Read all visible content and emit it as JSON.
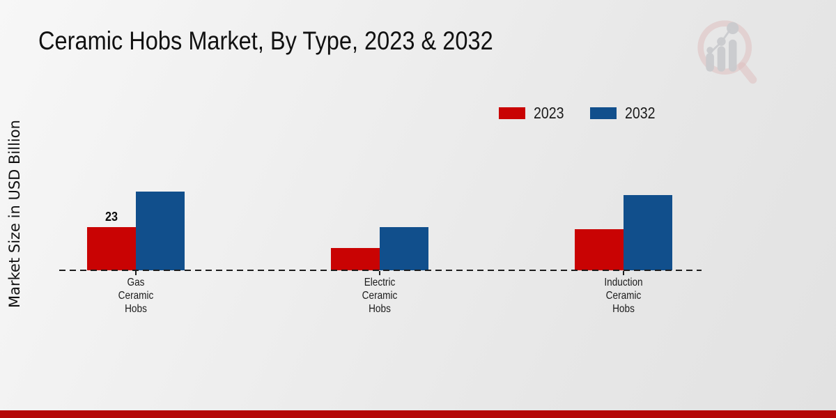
{
  "title": "Ceramic Hobs Market, By Type, 2023 & 2032",
  "y_axis_label": "Market Size in USD Billion",
  "legend": {
    "position": "top-right",
    "items": [
      {
        "label": "2023",
        "color": "#c90303"
      },
      {
        "label": "2032",
        "color": "#114f8c"
      }
    ]
  },
  "footer": {
    "brand_bar_color": "#b40808"
  },
  "watermark": {
    "name": "magnifier-bar-chart-logo",
    "ring_color": "#dfc0c0",
    "bars_color": "#c9cacd"
  },
  "chart_data": {
    "type": "bar",
    "categories": [
      "Gas Ceramic Hobs",
      "Electric Ceramic Hobs",
      "Induction Ceramic Hobs"
    ],
    "series": [
      {
        "name": "2023",
        "color": "#c90303",
        "values": [
          23,
          12,
          22
        ]
      },
      {
        "name": "2032",
        "color": "#114f8c",
        "values": [
          42,
          23,
          40
        ]
      }
    ],
    "bar_labels": [
      {
        "category_index": 0,
        "series_index": 0,
        "text": "23"
      }
    ],
    "title": "Ceramic Hobs Market, By Type, 2023 & 2032",
    "xlabel": "",
    "ylabel": "Market Size in USD Billion",
    "ylim": [
      0,
      50
    ],
    "grid": false,
    "baseline_style": "dashed",
    "legend_position": "top-right"
  }
}
